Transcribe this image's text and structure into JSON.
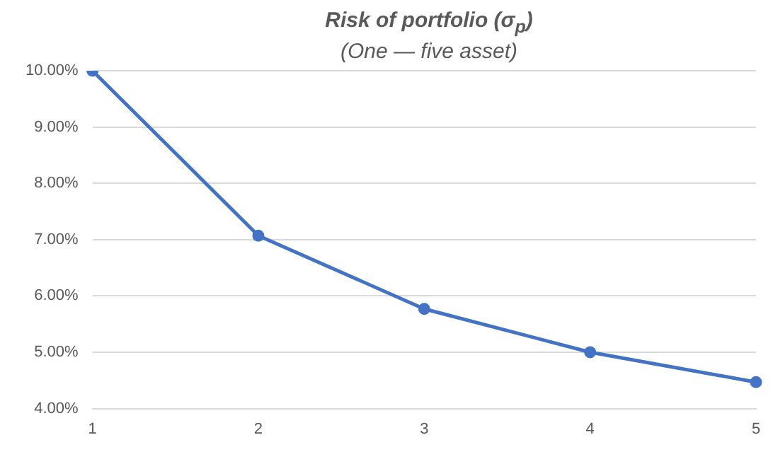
{
  "chart_data": {
    "type": "line",
    "title": "Risk of portfolio (σ$_{p}$)",
    "subtitle": "(One — five asset)",
    "categories": [
      "1",
      "2",
      "3",
      "4",
      "5"
    ],
    "series": [
      {
        "color": "#4472c4",
        "values": [
          10.0,
          7.07,
          5.77,
          5.0,
          4.47
        ]
      }
    ],
    "ylim": [
      4,
      10
    ],
    "yticks": [
      {
        "value": 4,
        "label": "4.00%"
      },
      {
        "value": 5,
        "label": "5.00%"
      },
      {
        "value": 6,
        "label": "6.00%"
      },
      {
        "value": 7,
        "label": "7.00%"
      },
      {
        "value": 8,
        "label": "8.00%"
      },
      {
        "value": 9,
        "label": "9.00%"
      },
      {
        "value": 10,
        "label": "10.00%"
      }
    ],
    "grid": "y",
    "legend": false,
    "marker": "circle",
    "line_style": "solid"
  }
}
